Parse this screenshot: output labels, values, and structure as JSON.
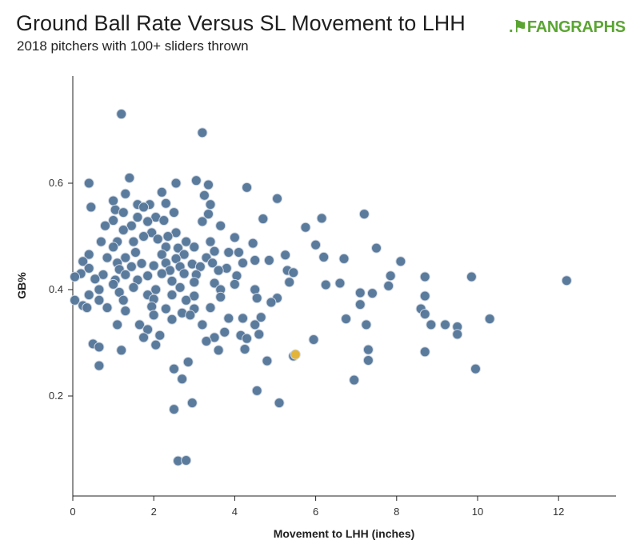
{
  "title": "Ground Ball Rate Versus SL Movement to LHH",
  "subtitle": "2018 pitchers with 100+ sliders thrown",
  "logo": {
    "mark": ".⚑",
    "fan": "FAN",
    "graphs": "GRAPHS"
  },
  "chart_data": {
    "type": "scatter",
    "xlabel": "Movement to LHH (inches)",
    "ylabel": "GB%",
    "xlim": [
      0,
      13.4
    ],
    "ylim": [
      0.02,
      0.78
    ],
    "xticks": [
      0,
      2,
      4,
      6,
      8,
      10,
      12
    ],
    "xtick_labels": [
      "0",
      "2",
      "4",
      "6",
      "8",
      "10",
      "12"
    ],
    "yticks": [
      0.2,
      0.4,
      0.6
    ],
    "ytick_labels": [
      "0.2",
      "0.4",
      "0.6"
    ],
    "grid": false,
    "colors": {
      "points": "#56779a",
      "point_stroke": "#d0d8e2",
      "highlight": "#e2b43a"
    },
    "series": [
      {
        "points": [
          [
            1.2,
            0.73
          ],
          [
            3.2,
            0.695
          ],
          [
            1.4,
            0.61
          ],
          [
            3.05,
            0.605
          ],
          [
            0.4,
            0.6
          ],
          [
            2.55,
            0.6
          ],
          [
            3.35,
            0.597
          ],
          [
            4.3,
            0.592
          ],
          [
            2.2,
            0.583
          ],
          [
            1.3,
            0.58
          ],
          [
            3.25,
            0.577
          ],
          [
            5.05,
            0.571
          ],
          [
            1.0,
            0.567
          ],
          [
            2.3,
            0.562
          ],
          [
            1.6,
            0.56
          ],
          [
            1.9,
            0.56
          ],
          [
            0.45,
            0.555
          ],
          [
            1.75,
            0.555
          ],
          [
            3.4,
            0.56
          ],
          [
            1.05,
            0.55
          ],
          [
            1.25,
            0.545
          ],
          [
            2.5,
            0.545
          ],
          [
            3.35,
            0.542
          ],
          [
            6.15,
            0.534
          ],
          [
            4.7,
            0.533
          ],
          [
            7.2,
            0.542
          ],
          [
            1.6,
            0.536
          ],
          [
            2.05,
            0.536
          ],
          [
            1.0,
            0.53
          ],
          [
            1.85,
            0.528
          ],
          [
            2.25,
            0.53
          ],
          [
            3.2,
            0.528
          ],
          [
            0.8,
            0.52
          ],
          [
            1.45,
            0.52
          ],
          [
            3.65,
            0.52
          ],
          [
            5.75,
            0.517
          ],
          [
            1.25,
            0.512
          ],
          [
            1.95,
            0.507
          ],
          [
            2.55,
            0.507
          ],
          [
            1.75,
            0.5
          ],
          [
            2.35,
            0.5
          ],
          [
            2.1,
            0.495
          ],
          [
            4.0,
            0.498
          ],
          [
            0.7,
            0.49
          ],
          [
            1.1,
            0.49
          ],
          [
            1.5,
            0.49
          ],
          [
            2.8,
            0.49
          ],
          [
            3.4,
            0.49
          ],
          [
            4.45,
            0.487
          ],
          [
            6.0,
            0.484
          ],
          [
            7.5,
            0.478
          ],
          [
            1.0,
            0.48
          ],
          [
            2.3,
            0.48
          ],
          [
            2.6,
            0.478
          ],
          [
            3.0,
            0.48
          ],
          [
            3.5,
            0.472
          ],
          [
            3.85,
            0.47
          ],
          [
            4.1,
            0.47
          ],
          [
            0.4,
            0.466
          ],
          [
            1.55,
            0.47
          ],
          [
            2.2,
            0.466
          ],
          [
            2.75,
            0.466
          ],
          [
            5.25,
            0.465
          ],
          [
            6.2,
            0.461
          ],
          [
            6.7,
            0.458
          ],
          [
            0.85,
            0.46
          ],
          [
            1.3,
            0.46
          ],
          [
            2.55,
            0.458
          ],
          [
            3.3,
            0.46
          ],
          [
            4.5,
            0.455
          ],
          [
            4.85,
            0.455
          ],
          [
            8.1,
            0.453
          ],
          [
            0.25,
            0.453
          ],
          [
            1.1,
            0.45
          ],
          [
            1.7,
            0.449
          ],
          [
            2.3,
            0.45
          ],
          [
            2.95,
            0.448
          ],
          [
            3.45,
            0.45
          ],
          [
            4.2,
            0.45
          ],
          [
            1.45,
            0.443
          ],
          [
            2.0,
            0.445
          ],
          [
            2.65,
            0.443
          ],
          [
            3.15,
            0.443
          ],
          [
            3.8,
            0.44
          ],
          [
            0.4,
            0.44
          ],
          [
            1.15,
            0.438
          ],
          [
            2.4,
            0.436
          ],
          [
            3.6,
            0.436
          ],
          [
            5.3,
            0.436
          ],
          [
            5.45,
            0.432
          ],
          [
            0.2,
            0.43
          ],
          [
            0.75,
            0.428
          ],
          [
            1.3,
            0.428
          ],
          [
            1.85,
            0.426
          ],
          [
            2.2,
            0.43
          ],
          [
            2.75,
            0.43
          ],
          [
            3.05,
            0.428
          ],
          [
            4.05,
            0.426
          ],
          [
            7.85,
            0.426
          ],
          [
            8.7,
            0.424
          ],
          [
            9.85,
            0.424
          ],
          [
            12.2,
            0.417
          ],
          [
            0.05,
            0.424
          ],
          [
            0.55,
            0.42
          ],
          [
            1.05,
            0.418
          ],
          [
            1.6,
            0.418
          ],
          [
            2.45,
            0.416
          ],
          [
            3.0,
            0.414
          ],
          [
            3.5,
            0.412
          ],
          [
            4.0,
            0.41
          ],
          [
            5.35,
            0.414
          ],
          [
            6.25,
            0.409
          ],
          [
            6.6,
            0.412
          ],
          [
            7.8,
            0.407
          ],
          [
            1.0,
            0.41
          ],
          [
            1.5,
            0.404
          ],
          [
            2.05,
            0.4
          ],
          [
            2.65,
            0.404
          ],
          [
            3.65,
            0.4
          ],
          [
            4.5,
            0.4
          ],
          [
            0.65,
            0.4
          ],
          [
            1.15,
            0.395
          ],
          [
            7.1,
            0.394
          ],
          [
            7.4,
            0.393
          ],
          [
            0.4,
            0.39
          ],
          [
            1.85,
            0.39
          ],
          [
            2.45,
            0.39
          ],
          [
            3.0,
            0.388
          ],
          [
            3.65,
            0.386
          ],
          [
            4.55,
            0.384
          ],
          [
            5.05,
            0.384
          ],
          [
            8.7,
            0.388
          ],
          [
            0.05,
            0.38
          ],
          [
            0.65,
            0.38
          ],
          [
            1.25,
            0.38
          ],
          [
            2.0,
            0.382
          ],
          [
            2.8,
            0.38
          ],
          [
            4.9,
            0.376
          ],
          [
            0.25,
            0.37
          ],
          [
            0.85,
            0.366
          ],
          [
            1.95,
            0.368
          ],
          [
            2.3,
            0.364
          ],
          [
            3.0,
            0.364
          ],
          [
            3.4,
            0.366
          ],
          [
            7.1,
            0.372
          ],
          [
            8.6,
            0.364
          ],
          [
            0.35,
            0.366
          ],
          [
            2.7,
            0.356
          ],
          [
            2.9,
            0.352
          ],
          [
            3.85,
            0.346
          ],
          [
            4.2,
            0.346
          ],
          [
            4.65,
            0.348
          ],
          [
            8.7,
            0.354
          ],
          [
            10.3,
            0.345
          ],
          [
            1.3,
            0.36
          ],
          [
            2.0,
            0.352
          ],
          [
            6.75,
            0.345
          ],
          [
            2.45,
            0.344
          ],
          [
            1.1,
            0.334
          ],
          [
            1.65,
            0.334
          ],
          [
            3.2,
            0.334
          ],
          [
            4.5,
            0.334
          ],
          [
            7.25,
            0.334
          ],
          [
            8.85,
            0.334
          ],
          [
            9.2,
            0.334
          ],
          [
            9.5,
            0.33
          ],
          [
            1.85,
            0.325
          ],
          [
            3.75,
            0.32
          ],
          [
            4.15,
            0.314
          ],
          [
            4.6,
            0.316
          ],
          [
            9.5,
            0.316
          ],
          [
            1.75,
            0.31
          ],
          [
            2.15,
            0.314
          ],
          [
            3.5,
            0.31
          ],
          [
            4.3,
            0.308
          ],
          [
            5.95,
            0.306
          ],
          [
            0.5,
            0.298
          ],
          [
            2.05,
            0.296
          ],
          [
            3.3,
            0.303
          ],
          [
            0.65,
            0.292
          ],
          [
            1.2,
            0.286
          ],
          [
            3.6,
            0.286
          ],
          [
            4.25,
            0.288
          ],
          [
            7.3,
            0.287
          ],
          [
            8.7,
            0.283
          ],
          [
            5.45,
            0.275
          ],
          [
            2.85,
            0.264
          ],
          [
            4.8,
            0.266
          ],
          [
            0.65,
            0.257
          ],
          [
            7.3,
            0.267
          ],
          [
            9.95,
            0.251
          ],
          [
            2.5,
            0.251
          ],
          [
            2.7,
            0.232
          ],
          [
            6.95,
            0.23
          ],
          [
            4.55,
            0.21
          ],
          [
            5.1,
            0.187
          ],
          [
            2.95,
            0.187
          ],
          [
            2.5,
            0.175
          ],
          [
            2.6,
            0.078
          ],
          [
            2.8,
            0.079
          ]
        ]
      }
    ],
    "highlight": [
      [
        5.5,
        0.278
      ]
    ]
  }
}
